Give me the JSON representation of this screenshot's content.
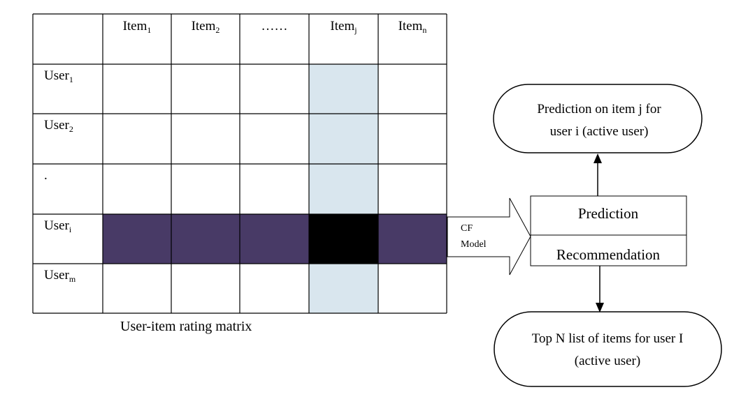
{
  "matrix": {
    "caption": "User-item rating matrix",
    "item_headers": [
      {
        "base": "Item",
        "sub": "1"
      },
      {
        "base": "Item",
        "sub": "2"
      },
      {
        "base": "……",
        "sub": ""
      },
      {
        "base": "Item",
        "sub": "j"
      },
      {
        "base": "Item",
        "sub": "n"
      }
    ],
    "user_rows": [
      {
        "base": "User",
        "sub": "1"
      },
      {
        "base": "User",
        "sub": "2"
      },
      {
        "base": ".",
        "sub": ""
      },
      {
        "base": "User",
        "sub": "i"
      },
      {
        "base": "User",
        "sub": "m"
      }
    ],
    "highlight_column_index": 3,
    "highlight_row_index": 3
  },
  "arrow": {
    "line1": "CF",
    "line2": "Model"
  },
  "process_box": {
    "top_label": "Prediction",
    "bottom_label": "Recommendation"
  },
  "prediction_output": {
    "line1": "Prediction on item j for",
    "line2": "user i (active user)"
  },
  "recommendation_output": {
    "line1": "Top N list of items for user I",
    "line2": "(active user)"
  },
  "colors": {
    "column_highlight": "#d9e6ee",
    "row_highlight": "#483a66",
    "intersection": "#000000",
    "lines": "#000000",
    "background": "#ffffff"
  }
}
